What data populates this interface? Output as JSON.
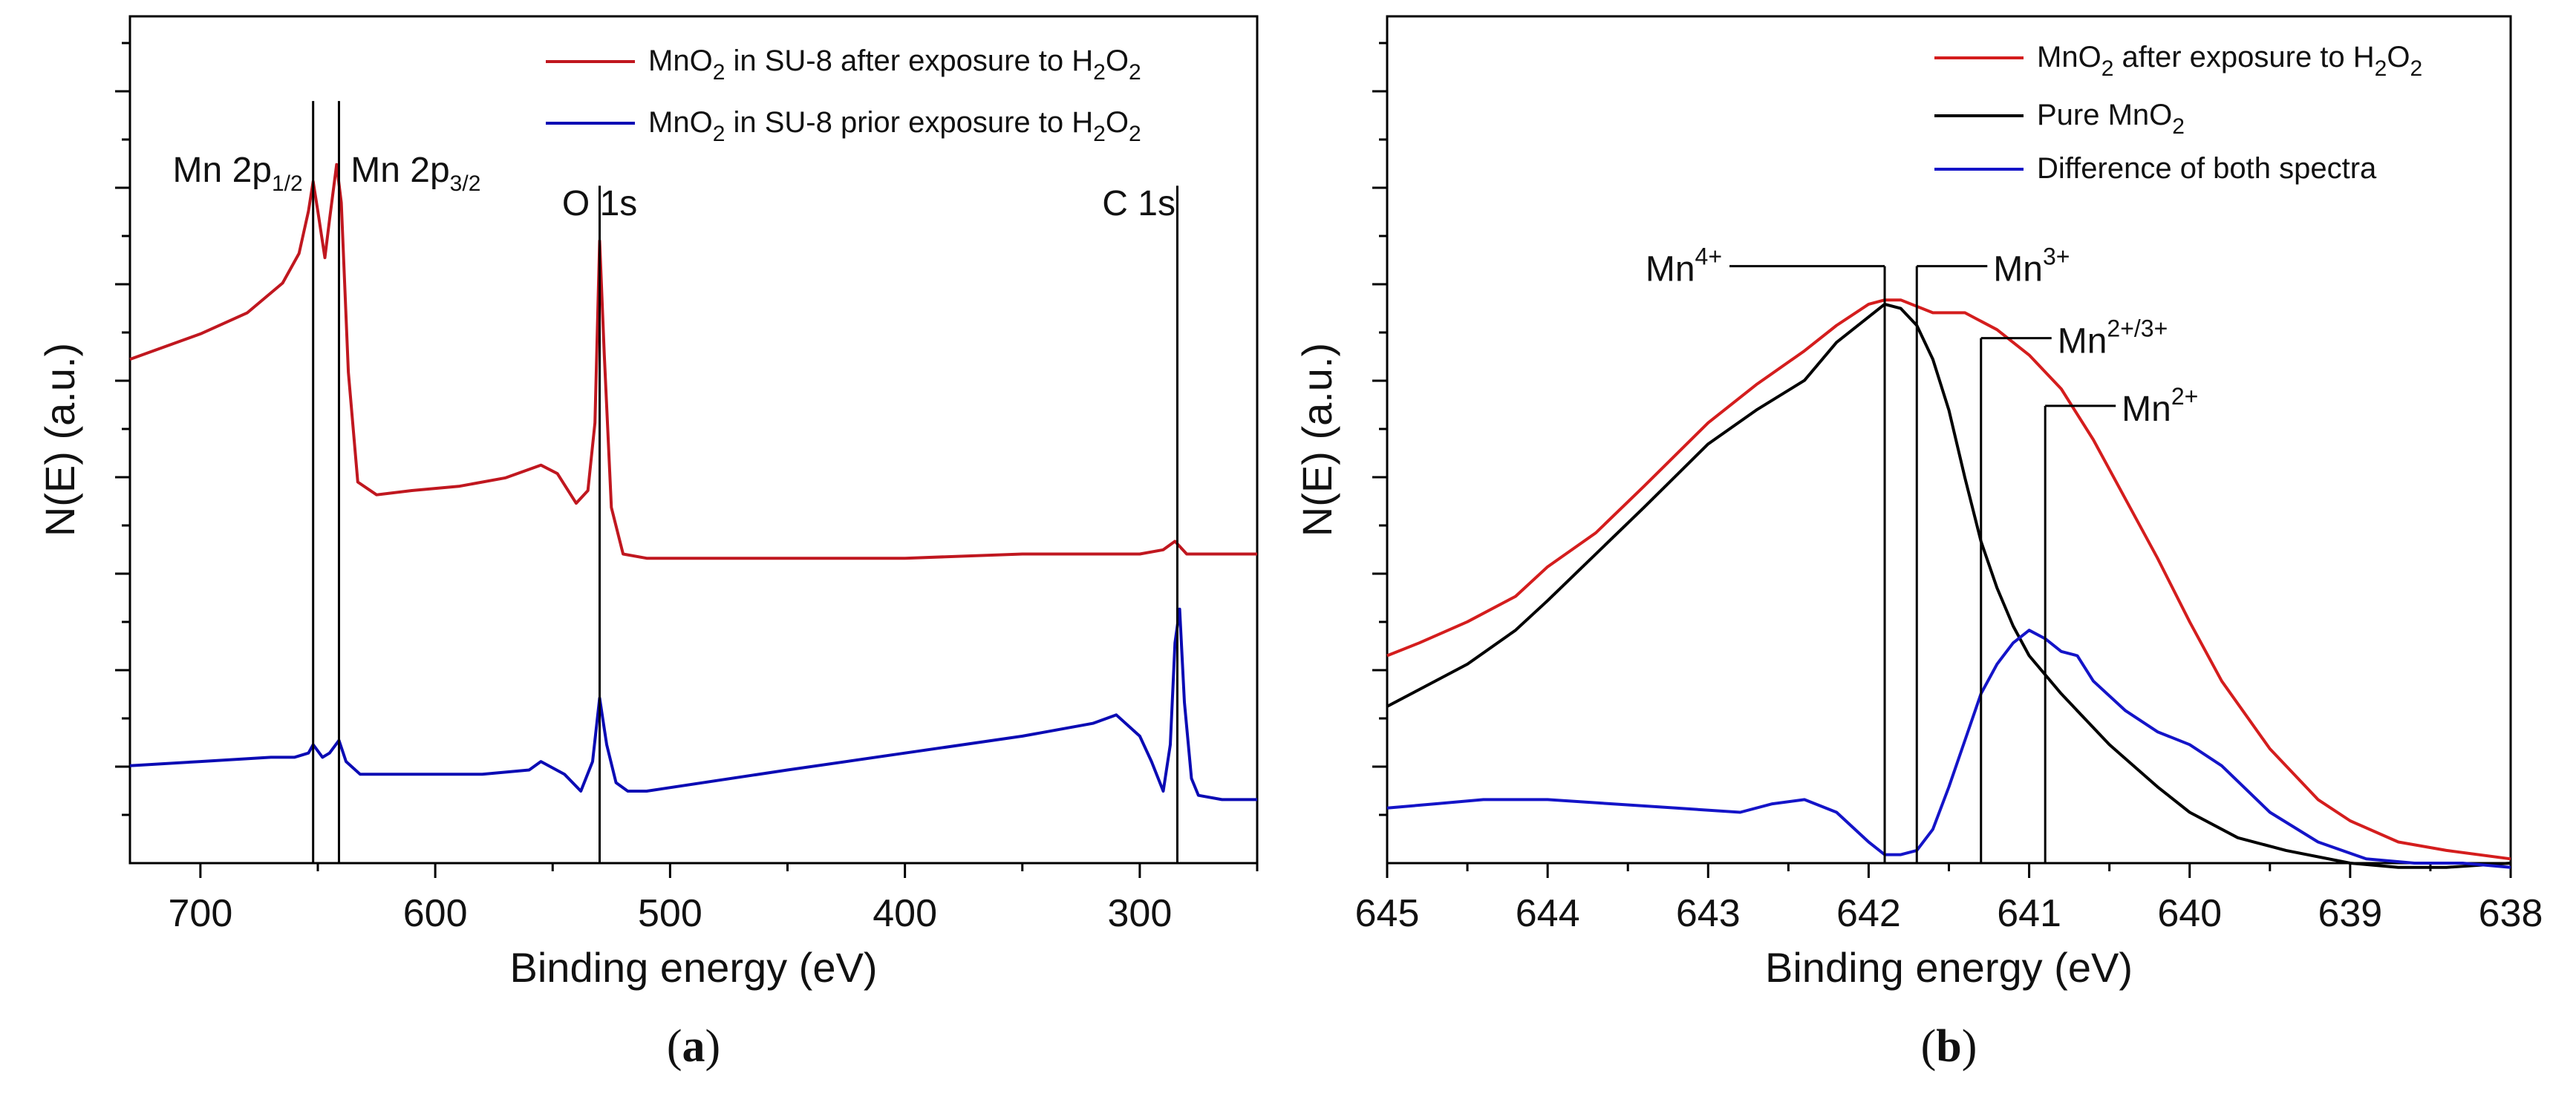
{
  "chart_data": [
    {
      "id": "a",
      "type": "line",
      "caption": {
        "open": "(",
        "letter": "a",
        "close": ")"
      },
      "xlabel": "Binding energy (eV)",
      "ylabel": "N(E) (a.u.)",
      "xlim": [
        730,
        250
      ],
      "ylim": [
        0,
        100
      ],
      "xticks": [
        700,
        600,
        500,
        400,
        300
      ],
      "xtick_labels": [
        "700",
        "600",
        "500",
        "400",
        "300"
      ],
      "colors": {
        "after": "#c0171f",
        "prior": "#0b0bb4",
        "marker": "#000000"
      },
      "legend": [
        {
          "series": "after",
          "base": "MnO",
          "s1": "2",
          "mid": " in SU-8 after exposure to H",
          "s2": "2",
          "end": "O",
          "s3": "2"
        },
        {
          "series": "prior",
          "base": "MnO",
          "s1": "2",
          "mid": " in SU-8 prior exposure to H",
          "s2": "2",
          "end": "O",
          "s3": "2"
        }
      ],
      "markers": [
        {
          "x": 652,
          "y_top": 90,
          "base": "Mn 2p",
          "sub": "1/2",
          "label_x": 684
        },
        {
          "x": 641,
          "y_top": 90,
          "base": "Mn 2p",
          "sub": "3/2",
          "label_x": 636
        },
        {
          "x": 530,
          "y_top": 80,
          "base": "O 1s",
          "sub": "",
          "label_x": 546
        },
        {
          "x": 284,
          "y_top": 80,
          "base": "C 1s",
          "sub": "",
          "label_x": 316
        }
      ],
      "series": [
        {
          "key": "after",
          "name": "MnO2 in SU-8 after exposure to H2O2",
          "x": [
            730,
            700,
            680,
            665,
            658,
            654,
            652,
            650,
            647,
            645,
            642,
            640,
            637,
            633,
            625,
            610,
            590,
            570,
            555,
            548,
            540,
            535,
            532,
            530,
            528,
            525,
            520,
            510,
            500,
            450,
            400,
            350,
            300,
            290,
            285,
            280,
            270,
            250
          ],
          "y": [
            59.5,
            62.5,
            65,
            68.5,
            72,
            77,
            80.5,
            77,
            71.5,
            76,
            82.5,
            78,
            58,
            45,
            43.5,
            44,
            44.5,
            45.5,
            47,
            46,
            42.5,
            44,
            52,
            73.5,
            60,
            42,
            36.5,
            36,
            36,
            36,
            36,
            36.5,
            36.5,
            37,
            38,
            36.5,
            36.5,
            36.5
          ]
        },
        {
          "key": "prior",
          "name": "MnO2 in SU-8 prior exposure to H2O2",
          "x": [
            730,
            700,
            670,
            660,
            654,
            652,
            648,
            645,
            641,
            638,
            632,
            620,
            600,
            580,
            560,
            555,
            545,
            538,
            533,
            530,
            527,
            523,
            518,
            510,
            450,
            400,
            350,
            320,
            310,
            300,
            295,
            290,
            287,
            285,
            283,
            281,
            278,
            275,
            265,
            250
          ],
          "y": [
            11.5,
            12,
            12.5,
            12.5,
            13,
            14,
            12.5,
            13,
            14.5,
            12,
            10.5,
            10.5,
            10.5,
            10.5,
            11,
            12,
            10.5,
            8.5,
            12,
            19.5,
            14,
            9.5,
            8.5,
            8.5,
            11,
            13,
            15,
            16.5,
            17.5,
            15,
            12,
            8.5,
            14,
            26,
            30,
            19,
            10,
            8,
            7.5,
            7.5
          ]
        }
      ]
    },
    {
      "id": "b",
      "type": "line",
      "caption": {
        "open": "(",
        "letter": "b",
        "close": ")"
      },
      "xlabel": "Binding energy (eV)",
      "ylabel": "N(E) (a.u.)",
      "xlim": [
        645,
        638
      ],
      "ylim": [
        0,
        100
      ],
      "xticks": [
        645,
        644,
        643,
        642,
        641,
        640,
        639,
        638
      ],
      "xtick_labels": [
        "645",
        "644",
        "643",
        "642",
        "641",
        "640",
        "639",
        "638"
      ],
      "colors": {
        "after": "#d41d1d",
        "pure": "#000000",
        "diff": "#1414c8",
        "marker": "#000000"
      },
      "legend": [
        {
          "series": "after",
          "base": "MnO",
          "s1": "2",
          "mid": " after exposure to H",
          "s2": "2",
          "end": "O",
          "s3": "2"
        },
        {
          "series": "pure",
          "base": "Pure MnO",
          "s1": "2",
          "mid": "",
          "s2": "",
          "end": "",
          "s3": ""
        },
        {
          "series": "diff",
          "base": "Difference of both spectra",
          "s1": "",
          "mid": "",
          "s2": "",
          "end": "",
          "s3": ""
        }
      ],
      "markers": [
        {
          "x": 641.9,
          "y_top": 70.5,
          "base": "Mn",
          "sup": "4+",
          "side": "left"
        },
        {
          "x": 641.7,
          "y_top": 70.5,
          "base": "Mn",
          "sup": "3+",
          "side": "right"
        },
        {
          "x": 641.3,
          "y_top": 62,
          "base": "Mn",
          "sup": "2+/3+",
          "side": "right"
        },
        {
          "x": 640.9,
          "y_top": 54,
          "base": "Mn",
          "sup": "2+",
          "side": "right"
        }
      ],
      "series": [
        {
          "key": "after",
          "name": "MnO2 after exposure to H2O2",
          "x": [
            645,
            644.8,
            644.5,
            644.2,
            644,
            643.7,
            643.4,
            643,
            642.7,
            642.4,
            642.2,
            642,
            641.9,
            641.8,
            641.6,
            641.4,
            641.2,
            641,
            640.8,
            640.6,
            640.4,
            640.2,
            640,
            639.8,
            639.5,
            639.2,
            639,
            638.7,
            638.4,
            638
          ],
          "y": [
            24.5,
            26,
            28.5,
            31.5,
            35,
            39,
            44.5,
            52,
            56.5,
            60.5,
            63.5,
            66,
            66.5,
            66.5,
            65,
            65,
            63,
            60,
            56,
            50,
            43,
            36,
            28.5,
            21.5,
            13.5,
            7.5,
            5,
            2.5,
            1.5,
            0.5
          ]
        },
        {
          "key": "pure",
          "name": "Pure MnO2",
          "x": [
            645,
            644.8,
            644.5,
            644.2,
            644,
            643.7,
            643.4,
            643,
            642.7,
            642.4,
            642.2,
            642,
            641.9,
            641.8,
            641.7,
            641.6,
            641.5,
            641.4,
            641.3,
            641.2,
            641.1,
            641,
            640.8,
            640.5,
            640.2,
            640,
            639.7,
            639.4,
            639,
            638.7,
            638.4,
            638
          ],
          "y": [
            18.5,
            20.5,
            23.5,
            27.5,
            31,
            36.5,
            42,
            49.5,
            53.5,
            57,
            61.5,
            64.5,
            66,
            65.5,
            63.5,
            59.5,
            53.5,
            45.5,
            38,
            32.5,
            28,
            24.5,
            20,
            14,
            9,
            6,
            3,
            1.5,
            0,
            -0.5,
            -0.5,
            0
          ]
        },
        {
          "key": "diff",
          "name": "Difference of both spectra",
          "x": [
            645,
            644.7,
            644.4,
            644,
            643.6,
            643.2,
            642.8,
            642.6,
            642.4,
            642.2,
            642,
            641.9,
            641.8,
            641.7,
            641.6,
            641.5,
            641.4,
            641.3,
            641.2,
            641.1,
            641,
            640.9,
            640.8,
            640.7,
            640.6,
            640.4,
            640.2,
            640,
            639.8,
            639.5,
            639.2,
            638.9,
            638.6,
            638.3,
            638
          ],
          "y": [
            6.5,
            7,
            7.5,
            7.5,
            7,
            6.5,
            6,
            7,
            7.5,
            6,
            2.5,
            1,
            1,
            1.5,
            4,
            9,
            14.5,
            20,
            23.5,
            26,
            27.5,
            26.5,
            25,
            24.5,
            21.5,
            18,
            15.5,
            14,
            11.5,
            6,
            2.5,
            0.5,
            0,
            0,
            -0.5
          ]
        }
      ]
    }
  ]
}
